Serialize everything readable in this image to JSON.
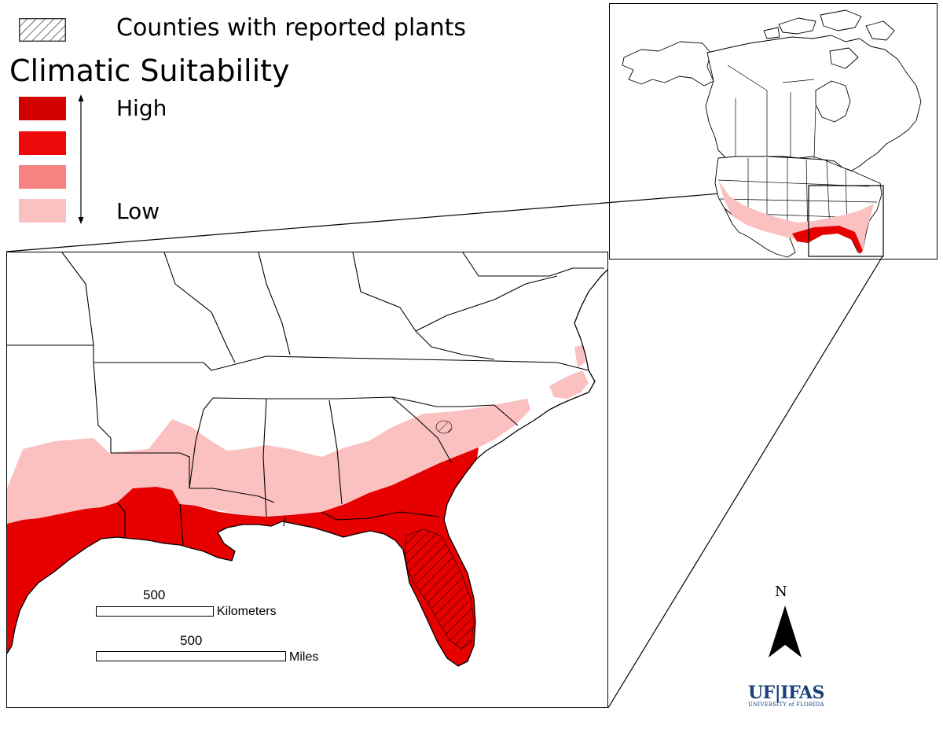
{
  "legend": {
    "hatch_label": "Counties with reported plants",
    "title": "Climatic Suitability",
    "high_label": "High",
    "low_label": "Low",
    "colors": [
      "#d40000",
      "#ee0a0a",
      "#f88282",
      "#fbc0c0"
    ]
  },
  "scales": {
    "km_value": "500",
    "km_unit": "Kilometers",
    "mi_value": "500",
    "mi_unit": "Miles"
  },
  "north_label": "N",
  "logo": {
    "main": "UF|IFAS",
    "sub": "UNIVERSITY of FLORIDA"
  },
  "map_colors": {
    "high": "#e60000",
    "low": "#fbc0c0",
    "outline": "#000000"
  }
}
